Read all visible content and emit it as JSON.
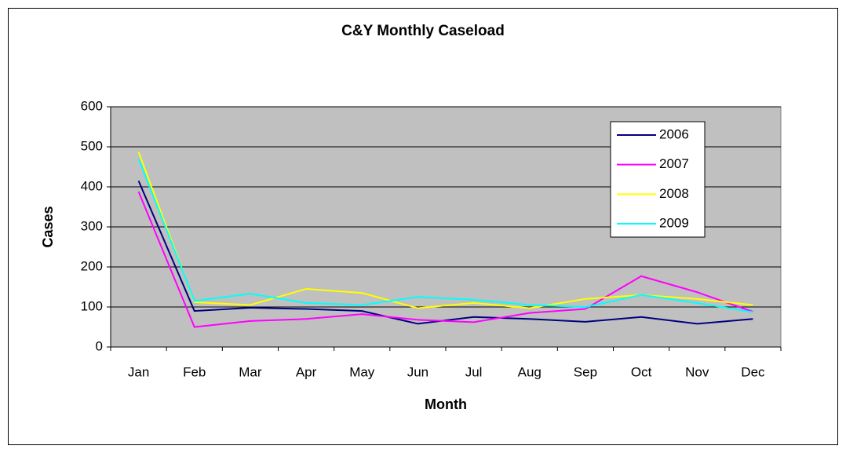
{
  "chart_data": {
    "type": "line",
    "title": "C&Y Monthly Caseload",
    "x_label": "Month",
    "y_label": "Cases",
    "categories": [
      "Jan",
      "Feb",
      "Mar",
      "Apr",
      "May",
      "Jun",
      "Jul",
      "Aug",
      "Sep",
      "Oct",
      "Nov",
      "Dec"
    ],
    "series": [
      {
        "name": "2006",
        "color": "#000080",
        "values": [
          415,
          90,
          98,
          95,
          90,
          58,
          75,
          70,
          63,
          75,
          58,
          70
        ]
      },
      {
        "name": "2007",
        "color": "#ff00ff",
        "values": [
          388,
          50,
          65,
          70,
          82,
          68,
          62,
          85,
          95,
          177,
          137,
          88
        ]
      },
      {
        "name": "2008",
        "color": "#ffff00",
        "values": [
          487,
          112,
          105,
          145,
          135,
          97,
          110,
          97,
          120,
          130,
          120,
          105
        ]
      },
      {
        "name": "2009",
        "color": "#00ffff",
        "values": [
          470,
          115,
          133,
          110,
          105,
          125,
          118,
          105,
          100,
          130,
          110,
          87
        ]
      }
    ],
    "ylim": [
      0,
      600
    ],
    "yticks": [
      0,
      100,
      200,
      300,
      400,
      500,
      600
    ],
    "grid": true,
    "legend": "upper right"
  }
}
